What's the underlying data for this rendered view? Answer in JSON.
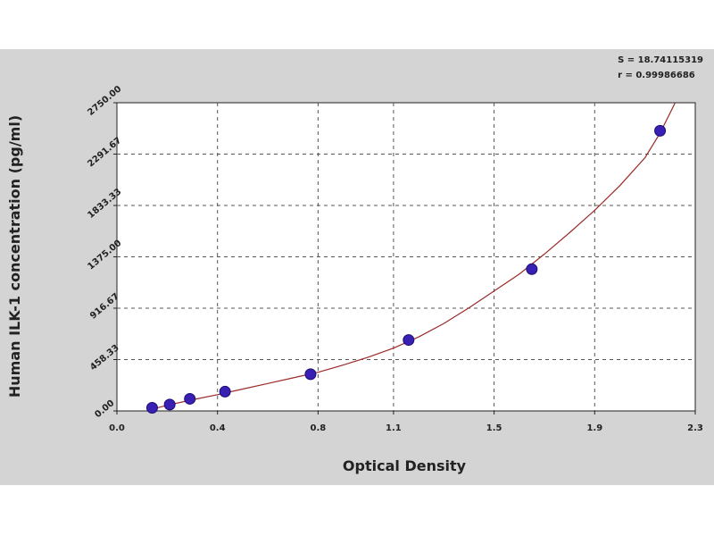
{
  "chart_data": {
    "type": "scatter",
    "title": "",
    "xlabel": "Optical Density",
    "ylabel": "Human ILK-1 concentration (pg/ml)",
    "xlim": [
      0.0,
      2.3
    ],
    "ylim": [
      0,
      2750
    ],
    "x_ticks": [
      0.0,
      0.4,
      0.8,
      1.1,
      1.5,
      1.9,
      2.3
    ],
    "x_tick_labels": [
      "0.0",
      "0.4",
      "0.8",
      "1.1",
      "1.5",
      "1.9",
      "2.3"
    ],
    "y_ticks": [
      0,
      458.33,
      916.67,
      1375,
      1833.33,
      2291.67,
      2750
    ],
    "y_tick_labels": [
      "0.00",
      "458.33",
      "916.67",
      "1375.00",
      "1833.33",
      "2291.67",
      "2750.00"
    ],
    "grid": true,
    "stats": [
      "S = 18.74115319",
      "r = 0.99986686"
    ],
    "series": [
      {
        "type": "scatter",
        "color": "#3a1fb5",
        "x": [
          0.14,
          0.21,
          0.29,
          0.43,
          0.77,
          1.16,
          1.65,
          2.16
        ],
        "y": [
          28,
          57,
          108,
          172,
          328,
          633,
          1265,
          2500
        ]
      },
      {
        "type": "line",
        "color": "#9b2a2a",
        "x": [
          0.12,
          0.2,
          0.3,
          0.4,
          0.5,
          0.6,
          0.7,
          0.8,
          0.9,
          1.0,
          1.1,
          1.2,
          1.3,
          1.4,
          1.5,
          1.6,
          1.7,
          1.8,
          1.9,
          2.0,
          2.1,
          2.16,
          2.22
        ],
        "y": [
          5,
          50,
          100,
          145,
          195,
          245,
          295,
          345,
          410,
          480,
          560,
          660,
          780,
          920,
          1070,
          1220,
          1400,
          1590,
          1790,
          2010,
          2260,
          2480,
          2750
        ]
      }
    ]
  }
}
